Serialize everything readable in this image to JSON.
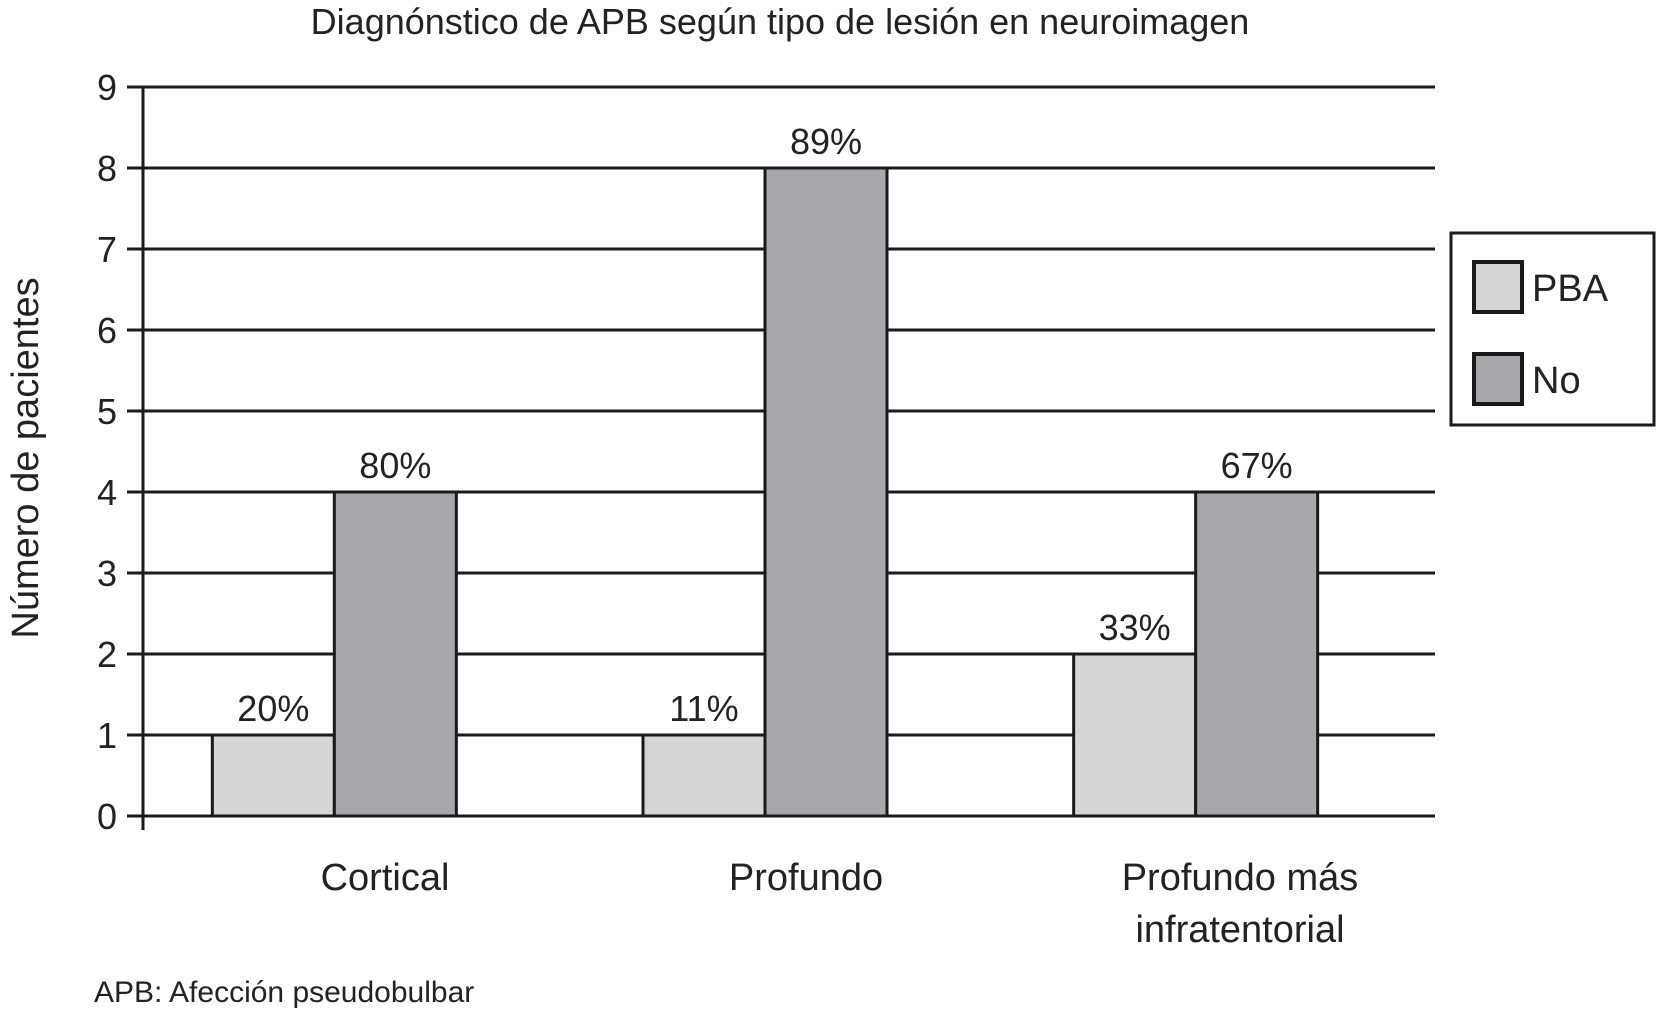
{
  "chart_data": {
    "type": "bar",
    "title": "Diagnónstico de APB según tipo de lesión en neuroimagen",
    "ylabel": "Número de pacientes",
    "xlabel": "",
    "ylim": [
      0,
      9
    ],
    "yticks": [
      0,
      1,
      2,
      3,
      4,
      5,
      6,
      7,
      8,
      9
    ],
    "grid": true,
    "legend_position": "right",
    "categories": [
      [
        "Cortical"
      ],
      [
        "Profundo"
      ],
      [
        "Profundo más",
        "infratentorial"
      ]
    ],
    "series": [
      {
        "name": "PBA",
        "color": "#d4d5d7",
        "values": [
          1,
          1,
          2
        ],
        "labels": [
          "20%",
          "11%",
          "33%"
        ]
      },
      {
        "name": "No",
        "color": "#a7a8ab",
        "values": [
          4,
          8,
          4
        ],
        "labels": [
          "80%",
          "89%",
          "67%"
        ]
      }
    ],
    "footnote": "APB: Afección pseudobulbar"
  }
}
